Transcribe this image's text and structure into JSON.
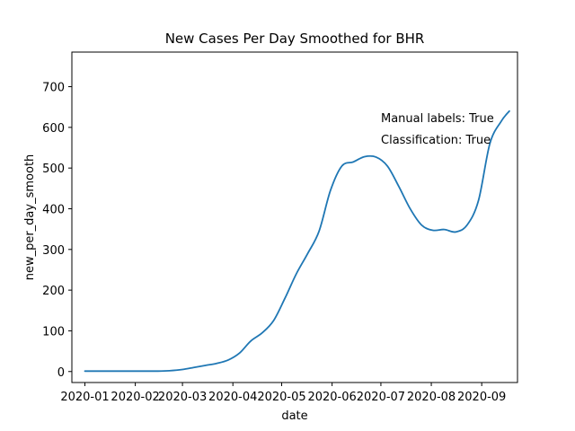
{
  "chart_data": {
    "type": "line",
    "title": "New Cases Per Day Smoothed for BHR",
    "xlabel": "date",
    "ylabel": "new_per_day_smooth",
    "x_ticks": [
      "2020-01",
      "2020-02",
      "2020-03",
      "2020-04",
      "2020-05",
      "2020-06",
      "2020-07",
      "2020-08",
      "2020-09"
    ],
    "y_ticks": [
      0,
      100,
      200,
      300,
      400,
      500,
      600,
      700
    ],
    "xlim": [
      "2019-12-24",
      "2020-09-23"
    ],
    "ylim": [
      -27,
      785
    ],
    "grid": false,
    "line_color": "#1f77b4",
    "annotations": [
      "Manual labels: True",
      "Classification: True"
    ],
    "series": [
      {
        "x": [
          "2020-01-01",
          "2020-01-15",
          "2020-02-01",
          "2020-02-15",
          "2020-02-22",
          "2020-03-01",
          "2020-03-08",
          "2020-03-15",
          "2020-03-22",
          "2020-03-29",
          "2020-04-05",
          "2020-04-12",
          "2020-04-19",
          "2020-04-26",
          "2020-05-03",
          "2020-05-10",
          "2020-05-17",
          "2020-05-24",
          "2020-05-31",
          "2020-06-07",
          "2020-06-14",
          "2020-06-21",
          "2020-06-28",
          "2020-07-05",
          "2020-07-12",
          "2020-07-19",
          "2020-07-26",
          "2020-08-02",
          "2020-08-09",
          "2020-08-16",
          "2020-08-23",
          "2020-08-30",
          "2020-09-06",
          "2020-09-13",
          "2020-09-18"
        ],
        "y": [
          1,
          1,
          1,
          1,
          2,
          5,
          10,
          15,
          20,
          28,
          45,
          75,
          95,
          125,
          180,
          240,
          290,
          345,
          445,
          505,
          515,
          528,
          527,
          505,
          455,
          400,
          360,
          347,
          349,
          343,
          360,
          420,
          560,
          615,
          640
        ]
      }
    ]
  }
}
